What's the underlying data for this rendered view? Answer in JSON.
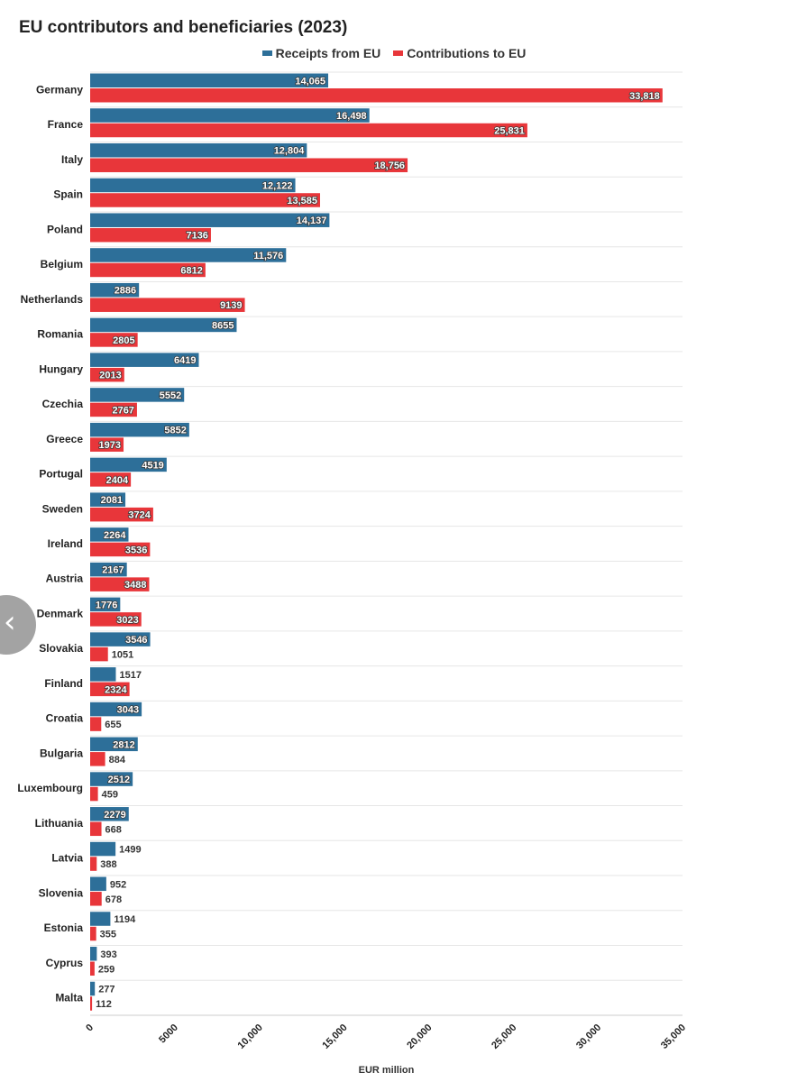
{
  "colors": {
    "receipts": "#2d6f99",
    "contributions": "#e8363a"
  },
  "back_button": {
    "icon": "chevron-left-icon",
    "glyph": "‹"
  },
  "chart_data": {
    "type": "bar",
    "orientation": "horizontal",
    "title": "EU contributors and beneficiaries (2023)",
    "xlabel": "EUR million",
    "ylabel": "",
    "xlim": [
      0,
      35000
    ],
    "grid": true,
    "legend_position": "top",
    "x_ticks": [
      "0",
      "5000",
      "10,000",
      "15,000",
      "20,000",
      "25,000",
      "30,000",
      "35,000"
    ],
    "categories": [
      "Germany",
      "France",
      "Italy",
      "Spain",
      "Poland",
      "Belgium",
      "Netherlands",
      "Romania",
      "Hungary",
      "Czechia",
      "Greece",
      "Portugal",
      "Sweden",
      "Ireland",
      "Austria",
      "Denmark",
      "Slovakia",
      "Finland",
      "Croatia",
      "Bulgaria",
      "Luxembourg",
      "Lithuania",
      "Latvia",
      "Slovenia",
      "Estonia",
      "Cyprus",
      "Malta"
    ],
    "series": [
      {
        "name": "Receipts from EU",
        "values": [
          14065,
          16498,
          12804,
          12122,
          14137,
          11576,
          2886,
          8655,
          6419,
          5552,
          5852,
          4519,
          2081,
          2264,
          2167,
          1776,
          3546,
          1517,
          3043,
          2812,
          2512,
          2279,
          1499,
          952,
          1194,
          393,
          277
        ],
        "labels": [
          "14,065",
          "16,498",
          "12,804",
          "12,122",
          "14,137",
          "11,576",
          "2886",
          "8655",
          "6419",
          "5552",
          "5852",
          "4519",
          "2081",
          "2264",
          "2167",
          "1776",
          "3546",
          "1517",
          "3043",
          "2812",
          "2512",
          "2279",
          "1499",
          "952",
          "1194",
          "393",
          "277"
        ]
      },
      {
        "name": "Contributions to EU",
        "values": [
          33818,
          25831,
          18756,
          13585,
          7136,
          6812,
          9139,
          2805,
          2013,
          2767,
          1973,
          2404,
          3724,
          3536,
          3488,
          3023,
          1051,
          2324,
          655,
          884,
          459,
          668,
          388,
          678,
          355,
          259,
          112
        ],
        "labels": [
          "33,818",
          "25,831",
          "18,756",
          "13,585",
          "7136",
          "6812",
          "9139",
          "2805",
          "2013",
          "2767",
          "1973",
          "2404",
          "3724",
          "3536",
          "3488",
          "3023",
          "1051",
          "2324",
          "655",
          "884",
          "459",
          "668",
          "388",
          "678",
          "355",
          "259",
          "112"
        ]
      }
    ]
  }
}
